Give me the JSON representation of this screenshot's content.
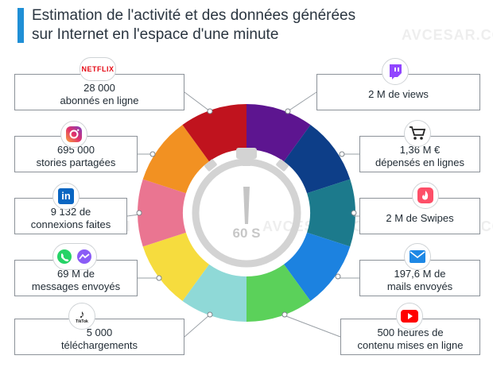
{
  "title": {
    "line1": "Estimation de l'activité et des données générées",
    "line2": "sur Internet en l'espace d'une minute"
  },
  "watermark": "AVCESAR.COM",
  "timer": {
    "label": "60 S"
  },
  "left": [
    {
      "key": "netflix",
      "icon": "netflix-logo-icon",
      "brand_text": "NETFLIX",
      "lines": [
        "28 000",
        "abonnés en ligne"
      ],
      "color": "#c0131e"
    },
    {
      "key": "instagram",
      "icon": "instagram-icon",
      "lines": [
        "695 000",
        "stories partagées"
      ],
      "color": "#f29122"
    },
    {
      "key": "linkedin",
      "icon": "linkedin-icon",
      "brand_text": "in",
      "lines": [
        "9 132 de",
        "connexions faites"
      ],
      "color": "#ea7591"
    },
    {
      "key": "messaging",
      "icon": "whatsapp-messenger-icon",
      "lines": [
        "69 M de",
        "messages envoyés"
      ],
      "color": "#f6dc3e"
    },
    {
      "key": "tiktok",
      "icon": "tiktok-icon",
      "brand_text": "TikTok",
      "lines": [
        "5 000",
        "téléchargements"
      ],
      "color": "#8fd9d7"
    }
  ],
  "right": [
    {
      "key": "twitch",
      "icon": "twitch-icon",
      "lines": [
        "2 M de views"
      ],
      "color": "#5d1590"
    },
    {
      "key": "shopping",
      "icon": "shopping-cart-icon",
      "lines": [
        "1,36 M €",
        "dépensés en lignes"
      ],
      "color": "#0d3e88"
    },
    {
      "key": "tinder",
      "icon": "tinder-flame-icon",
      "lines": [
        "2 M de Swipes"
      ],
      "color": "#1c7a8c"
    },
    {
      "key": "mail",
      "icon": "mail-icon",
      "lines": [
        "197,6 M de",
        "mails envoyés"
      ],
      "color": "#1c82e0"
    },
    {
      "key": "youtube",
      "icon": "youtube-icon",
      "lines": [
        "500 heures de",
        "contenu mises en ligne"
      ],
      "color": "#5bd15a"
    }
  ]
}
